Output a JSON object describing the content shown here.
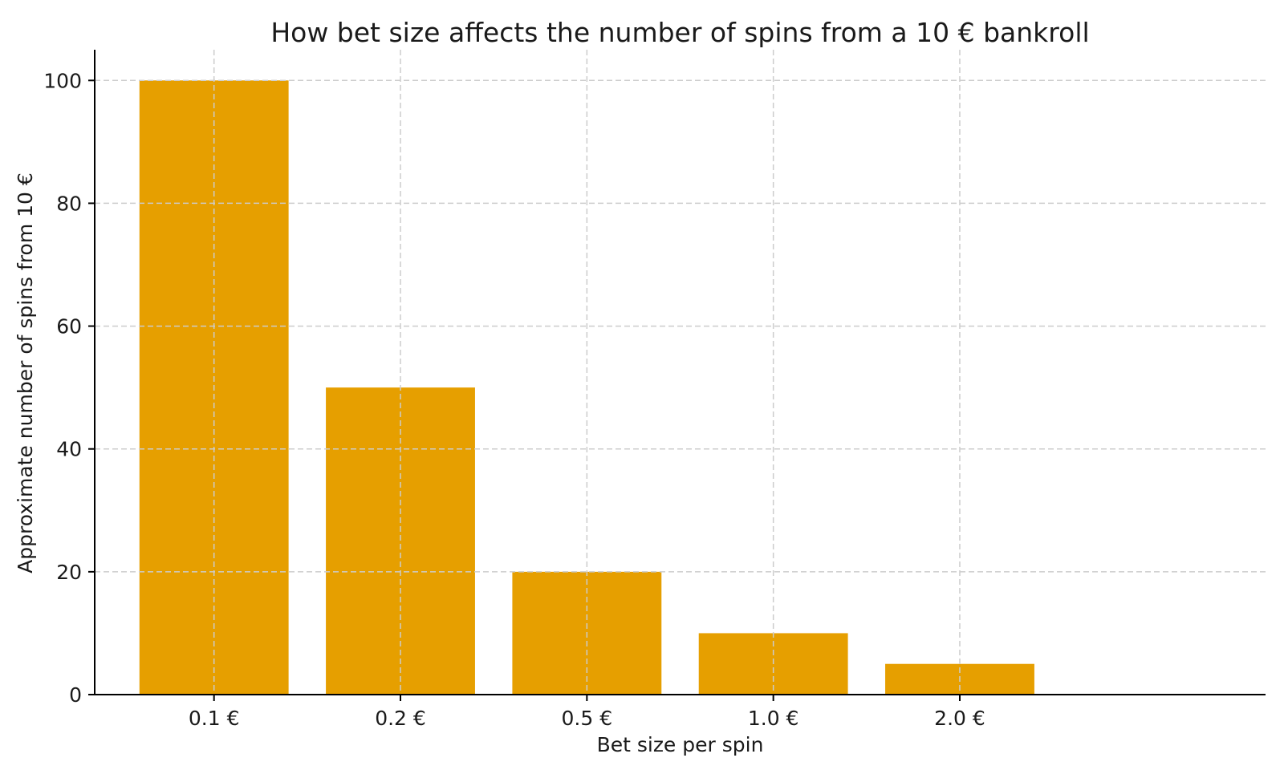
{
  "chart_data": {
    "type": "bar",
    "title": "How bet size affects the number of spins from a 10 € bankroll",
    "xlabel": "Bet size per spin",
    "ylabel": "Approximate number of spins from 10 €",
    "categories": [
      "0.1 €",
      "0.2 €",
      "0.5 €",
      "1.0 €",
      "2.0 €"
    ],
    "values": [
      100,
      50,
      20,
      10,
      5
    ],
    "yticks": [
      0,
      20,
      40,
      60,
      80,
      100
    ],
    "ylim": [
      0,
      105
    ],
    "grid": "on",
    "grid_style": "dashed",
    "legend": "none",
    "bar_color": "#E69F00",
    "grid_color": "#cccccc",
    "axis_color": "#000000",
    "text_color": "#1a1a1a",
    "background_color": "#ffffff"
  }
}
